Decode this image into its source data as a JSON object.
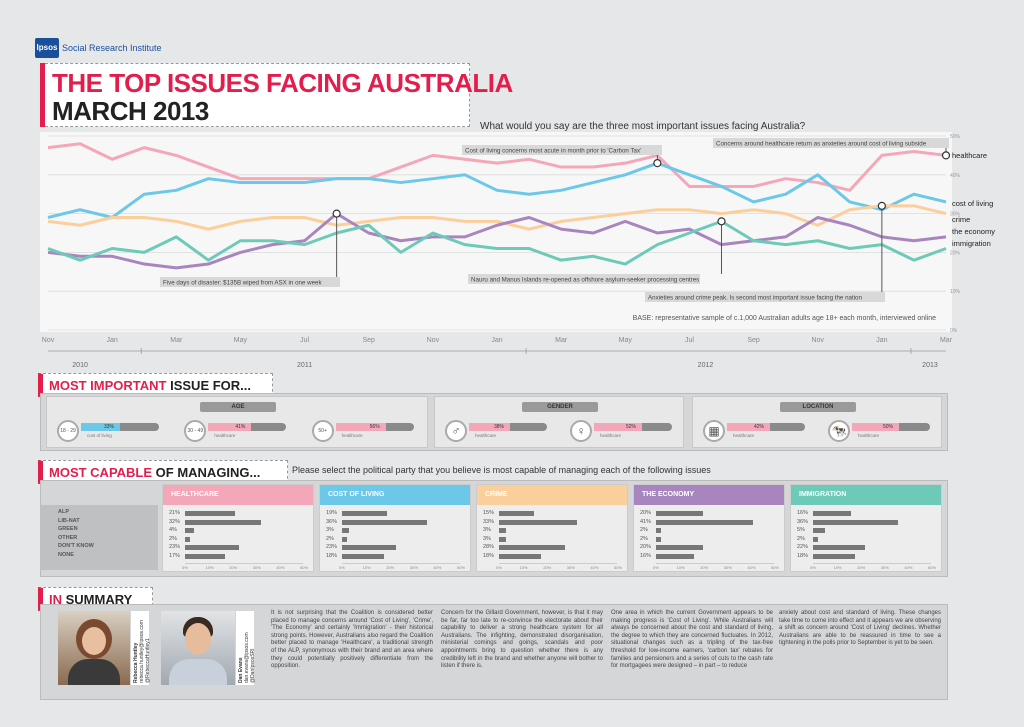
{
  "brand": {
    "logo": "Ipsos",
    "name": "Social Research Institute"
  },
  "title": {
    "line1": "THE TOP ISSUES FACING AUSTRALIA",
    "line2": "MARCH 2013"
  },
  "question": "What would you say are the three most important issues facing Australia?",
  "chart_data": {
    "type": "line",
    "x_months": [
      "Nov 2010",
      "Dec 2010",
      "Jan 2011",
      "Feb 2011",
      "Mar 2011",
      "Apr 2011",
      "May 2011",
      "Jun 2011",
      "Jul 2011",
      "Aug 2011",
      "Sep 2011",
      "Oct 2011",
      "Nov 2011",
      "Dec 2011",
      "Jan 2012",
      "Feb 2012",
      "Mar 2012",
      "Apr 2012",
      "May 2012",
      "Jun 2012",
      "Jul 2012",
      "Aug 2012",
      "Sep 2012",
      "Oct 2012",
      "Nov 2012",
      "Dec 2012",
      "Jan 2013",
      "Feb 2013",
      "Mar 2013"
    ],
    "tick_labels": [
      "Nov",
      "Jan",
      "Mar",
      "May",
      "Jul",
      "Sep",
      "Nov",
      "Jan",
      "Mar",
      "May",
      "Jul",
      "Sep",
      "Nov",
      "Jan",
      "Mar"
    ],
    "tick_index": [
      0,
      2,
      4,
      6,
      8,
      10,
      12,
      14,
      16,
      18,
      20,
      22,
      24,
      26,
      28
    ],
    "year_labels": [
      {
        "label": "2010",
        "at": 1
      },
      {
        "label": "2011",
        "at": 8
      },
      {
        "label": "2012",
        "at": 20.5
      },
      {
        "label": "2013",
        "at": 27.5
      }
    ],
    "ylim": [
      0,
      50
    ],
    "y_ticks": [
      "50%",
      "40%",
      "30%",
      "20%",
      "10%",
      "0%"
    ],
    "y_tick_values": [
      50,
      40,
      30,
      20,
      10,
      0
    ],
    "series": [
      {
        "name": "healthcare",
        "color": "#f4a7b9",
        "values": [
          47,
          48,
          44,
          47,
          45,
          42,
          39,
          39,
          39,
          39,
          39,
          42,
          45,
          44,
          43,
          44,
          42,
          42,
          43,
          45,
          37,
          37,
          37,
          39,
          38,
          36,
          45,
          46,
          45
        ]
      },
      {
        "name": "cost of living",
        "color": "#6cc8e8",
        "values": [
          29,
          31,
          29,
          35,
          36,
          39,
          38,
          38,
          38,
          39,
          39,
          38,
          39,
          40,
          36,
          35,
          36,
          38,
          40,
          43,
          40,
          37,
          33,
          35,
          40,
          33,
          31,
          35,
          33
        ]
      },
      {
        "name": "crime",
        "color": "#fbcf9c",
        "values": [
          28,
          27,
          29,
          29,
          28,
          26,
          28,
          29,
          29,
          27,
          28,
          29,
          29,
          28,
          28,
          26,
          28,
          29,
          30,
          31,
          31,
          30,
          31,
          30,
          27,
          31,
          32,
          32,
          30
        ]
      },
      {
        "name": "the economy",
        "color": "#a985c0",
        "values": [
          20,
          19,
          19,
          17,
          16,
          17,
          20,
          22,
          23,
          30,
          25,
          23,
          24,
          24,
          27,
          29,
          26,
          25,
          28,
          25,
          26,
          22,
          23,
          24,
          29,
          27,
          24,
          23,
          24
        ]
      },
      {
        "name": "immigration",
        "color": "#6dcab8",
        "values": [
          21,
          18,
          21,
          20,
          24,
          18,
          23,
          23,
          22,
          25,
          27,
          20,
          25,
          22,
          21,
          21,
          18,
          19,
          17,
          22,
          25,
          28,
          23,
          22,
          23,
          21,
          22,
          18,
          21
        ]
      }
    ],
    "annotations": [
      {
        "text": "Five days of disaster: $135B wiped from ASX in one week",
        "month": 9,
        "series": "the economy"
      },
      {
        "text": "Cost of living concerns most acute in month prior to 'Carbon Tax'",
        "month": 19,
        "series": "cost of living"
      },
      {
        "text": "Concerns around healthcare return as anxieties around cost of living subside",
        "month": 28,
        "series": "healthcare"
      },
      {
        "text": "Nauru and Manus Islands re-opened as offshore asylum-seeker processing centres",
        "month": 21,
        "series": "immigration"
      },
      {
        "text": "Anxieties around crime peak. Is second most important issue facing the nation",
        "month": 26,
        "series": "crime"
      }
    ],
    "base_note": "BASE: representative sample of c.1,000 Australian adults age 18+ each month, interviewed online"
  },
  "most_important": {
    "head_red": "MOST IMPORTANT",
    "head_dark": " ISSUE FOR...",
    "groups": [
      {
        "label": "AGE",
        "items": [
          {
            "tag": "18 - 29",
            "value": "33%",
            "frac": 0.33,
            "issue": "cost of living",
            "color": "#6cc8e8"
          },
          {
            "tag": "30 - 49",
            "value": "41%",
            "frac": 0.41,
            "issue": "healthcare",
            "color": "#f4a7b9"
          },
          {
            "tag": "50+",
            "value": "56%",
            "frac": 0.56,
            "issue": "healthcare",
            "color": "#f4a7b9"
          }
        ]
      },
      {
        "label": "GENDER",
        "items": [
          {
            "tag": "♂",
            "value": "38%",
            "frac": 0.38,
            "issue": "healthcare",
            "color": "#f4a7b9"
          },
          {
            "tag": "♀",
            "value": "52%",
            "frac": 0.52,
            "issue": "healthcare",
            "color": "#f4a7b9"
          }
        ]
      },
      {
        "label": "LOCATION",
        "items": [
          {
            "tag": "▦",
            "value": "42%",
            "frac": 0.42,
            "issue": "healthcare",
            "color": "#f4a7b9"
          },
          {
            "tag": "🐄",
            "value": "50%",
            "frac": 0.5,
            "issue": "healthcare",
            "color": "#f4a7b9"
          }
        ]
      }
    ]
  },
  "most_capable": {
    "head_red": "MOST CAPABLE",
    "head_dark": " OF MANAGING...",
    "question": "Please select the political party that you believe is most capable of managing each of the following issues",
    "parties": [
      "ALP",
      "LIB-NAT",
      "GREEN",
      "OTHER",
      "DON'T KNOW",
      "NONE"
    ],
    "axis": [
      "0%",
      "10%",
      "20%",
      "30%",
      "40%",
      "50%"
    ],
    "issues": [
      {
        "name": "HEALTHCARE",
        "color": "#f4a7b9",
        "values": [
          21,
          32,
          4,
          2,
          23,
          17
        ],
        "labels": [
          "21%",
          "32%",
          "4%",
          "2%",
          "23%",
          "17%"
        ]
      },
      {
        "name": "COST OF LIVING",
        "color": "#6cc8e8",
        "values": [
          19,
          36,
          3,
          2,
          23,
          18
        ],
        "labels": [
          "19%",
          "36%",
          "3%",
          "2%",
          "23%",
          "18%"
        ]
      },
      {
        "name": "CRIME",
        "color": "#fbcf9c",
        "values": [
          15,
          33,
          3,
          3,
          28,
          18
        ],
        "labels": [
          "15%",
          "33%",
          "3%",
          "3%",
          "28%",
          "18%"
        ]
      },
      {
        "name": "THE ECONOMY",
        "color": "#a985c0",
        "values": [
          20,
          41,
          2,
          2,
          20,
          16
        ],
        "labels": [
          "20%",
          "41%",
          "2%",
          "2%",
          "20%",
          "16%"
        ]
      },
      {
        "name": "IMMIGRATION",
        "color": "#6dcab8",
        "values": [
          16,
          36,
          5,
          2,
          22,
          18
        ],
        "labels": [
          "16%",
          "36%",
          "5%",
          "2%",
          "22%",
          "18%"
        ]
      }
    ]
  },
  "summary": {
    "head_red": "IN",
    "head_dark": " SUMMARY",
    "people": [
      {
        "name": "Rebecca Huntley",
        "email": "rebecca.huntley@ipsos.com",
        "handle": "@RebeccaHuntley1"
      },
      {
        "name": "Dan Evans",
        "email": "dan.evans@ipsos.com",
        "handle": "@DanIpsosSRI"
      }
    ],
    "columns": [
      "It is not surprising that the Coalition is considered better placed to manage concerns around 'Cost of Living', 'Crime', 'The Economy' and certainly 'Immigration' - their historical strong points. However, Australians also regard the Coalition better placed to manage 'Healthcare', a traditional strength of the ALP, synonymous with their brand and an area where they could potentially positively differentiate from the opposition.",
      "Concern for the Gillard Government, however, is that it may be far, far too late to re-convince the electorate about their capability to deliver a strong healthcare system for all Australians. The infighting, demonstrated disorganisation, ministerial comings and goings, scandals and poor appointments bring to question whether there is any credibility left in the brand and whether anyone will bother to listen if there is.",
      "One area in which the current Government appears to be making progress is 'Cost of Living'. While Australians will always be concerned about the cost and standard of living, the degree to which they are concerned fluctuates. In 2012, situational changes such as a tripling of the tax-free threshold for low-income earners, 'carbon tax' rebates for families and pensioners and a series of cuts to the cash rate for mortgagees were designed – in part – to reduce",
      "anxiety about cost and standard of living. These changes take time to come into effect and it appears we are observing a shift as concern around 'Cost of Living' declines. Whether Australians are able to be reassured in time to see a tightening in the polls prior to September is yet to be seen."
    ]
  }
}
